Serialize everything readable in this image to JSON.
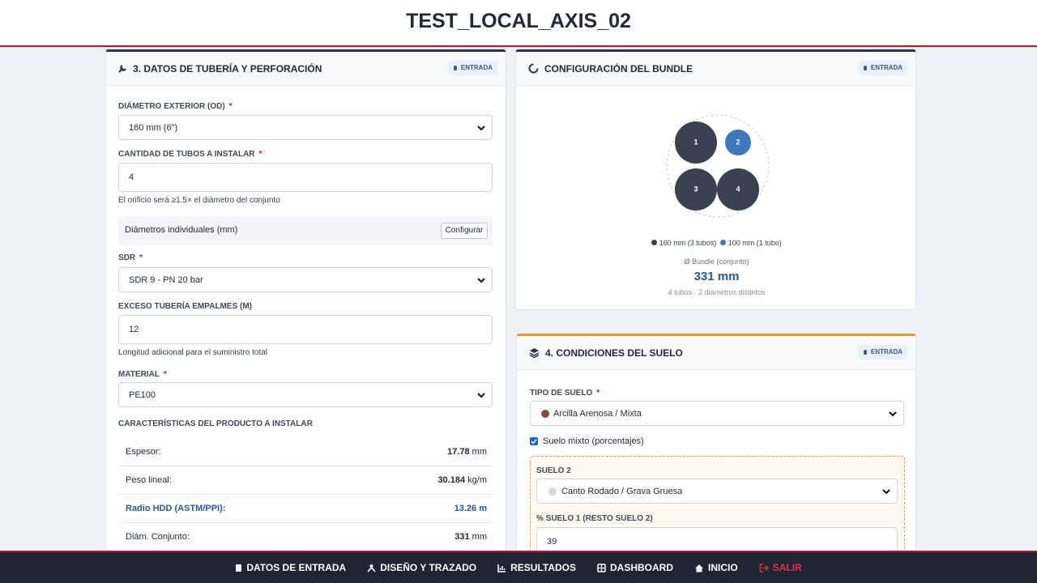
{
  "header": {
    "title": "TEST_LOCAL_AXIS_02"
  },
  "required_mark": "*",
  "pipe_panel": {
    "title": "3. DATOS DE TUBERÍA Y PERFORACIÓN",
    "badge": "ENTRADA",
    "od_label": "DIÁMETRO EXTERIOR (OD)",
    "od_value": "160 mm (6\")",
    "qty_label": "CANTIDAD DE TUBOS A INSTALAR",
    "qty_value": "4",
    "qty_hint": "El orificio será ≥1.5× el diámetro del conjunto",
    "diam_label": "Diámetros individuales (mm)",
    "diam_button": "Configurar",
    "sdr_label": "SDR",
    "sdr_value": "SDR 9 - PN 20 bar",
    "excess_label": "EXCESO TUBERÍA EMPALMES (M)",
    "excess_value": "12",
    "excess_hint": "Longitud adicional para el suministro total",
    "material_label": "MATERIAL",
    "material_value": "PE100",
    "chars_title": "CARACTERÍSTICAS DEL PRODUCTO A INSTALAR",
    "chars": [
      {
        "label": "Espesor:",
        "value": "17.78",
        "unit": "mm"
      },
      {
        "label": "Peso lineal:",
        "value": "30.184",
        "unit": "kg/m"
      },
      {
        "label": "Radio HDD (ASTM/PPI):",
        "value": "13.26",
        "unit": "m"
      },
      {
        "label": "Diám. Conjunto:",
        "value": "331",
        "unit": "mm"
      }
    ]
  },
  "bundle_panel": {
    "title": "CONFIGURACIÓN DEL BUNDLE",
    "badge": "ENTRADA",
    "tubes": [
      "1",
      "2",
      "3",
      "4"
    ],
    "legend": [
      "160 mm (3 tubos)",
      "100 mm (1 tubo)"
    ],
    "bundle_label": "Ø Bundle (conjunto)",
    "bundle_value": "331 mm",
    "summary": "4 tubos · 2 diámetros distintos"
  },
  "soil_panel": {
    "title": "4. CONDICIONES DEL SUELO",
    "badge": "ENTRADA",
    "type_label": "TIPO DE SUELO",
    "type_value": "Arcilla Arenosa / Mixta",
    "mixed_label": "Suelo mixto (porcentajes)",
    "soil2_label": "SUELO 2",
    "soil2_value": "Canto Rodado / Grava Gruesa",
    "pct_label": "% SUELO 1 (RESTO SUELO 2)",
    "pct_value": "39"
  },
  "nav": {
    "items": [
      "DATOS DE ENTRADA",
      "DISEÑO Y TRAZADO",
      "RESULTADOS",
      "DASHBOARD",
      "INICIO"
    ],
    "exit": "SALIR"
  }
}
